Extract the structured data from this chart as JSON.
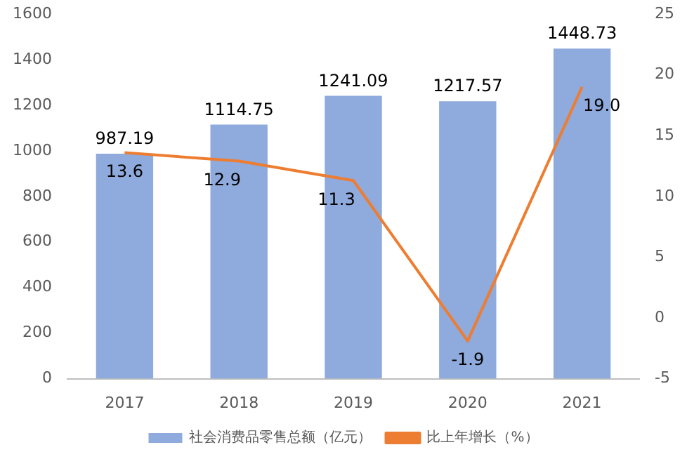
{
  "chart_data": {
    "type": "bar",
    "categories": [
      "2017",
      "2018",
      "2019",
      "2020",
      "2021"
    ],
    "series": [
      {
        "name": "社会消费品零售总额（亿元）",
        "color": "#8faadc",
        "values": [
          987.19,
          1114.75,
          1241.09,
          1217.57,
          1448.73
        ],
        "value_labels": [
          "987.19",
          "1114.75",
          "1241.09",
          "1217.57",
          "1448.73"
        ]
      },
      {
        "name": "比上年增长（%）",
        "type": "line",
        "axis": "y2",
        "color": "#ed7d31",
        "values": [
          13.6,
          12.9,
          11.3,
          -1.9,
          19.0
        ],
        "value_labels": [
          "13.6",
          "12.9",
          "11.3",
          "-1.9",
          "19.0"
        ]
      }
    ],
    "ylim": [
      0,
      1600
    ],
    "yticks": [
      0,
      200,
      400,
      600,
      800,
      1000,
      1200,
      1400,
      1600
    ],
    "y2lim": [
      -5,
      25
    ],
    "y2ticks": [
      -5,
      0,
      5,
      10,
      15,
      20,
      25
    ],
    "grid": false,
    "legend": "bottom",
    "marker": "none",
    "line_style": "solid"
  }
}
